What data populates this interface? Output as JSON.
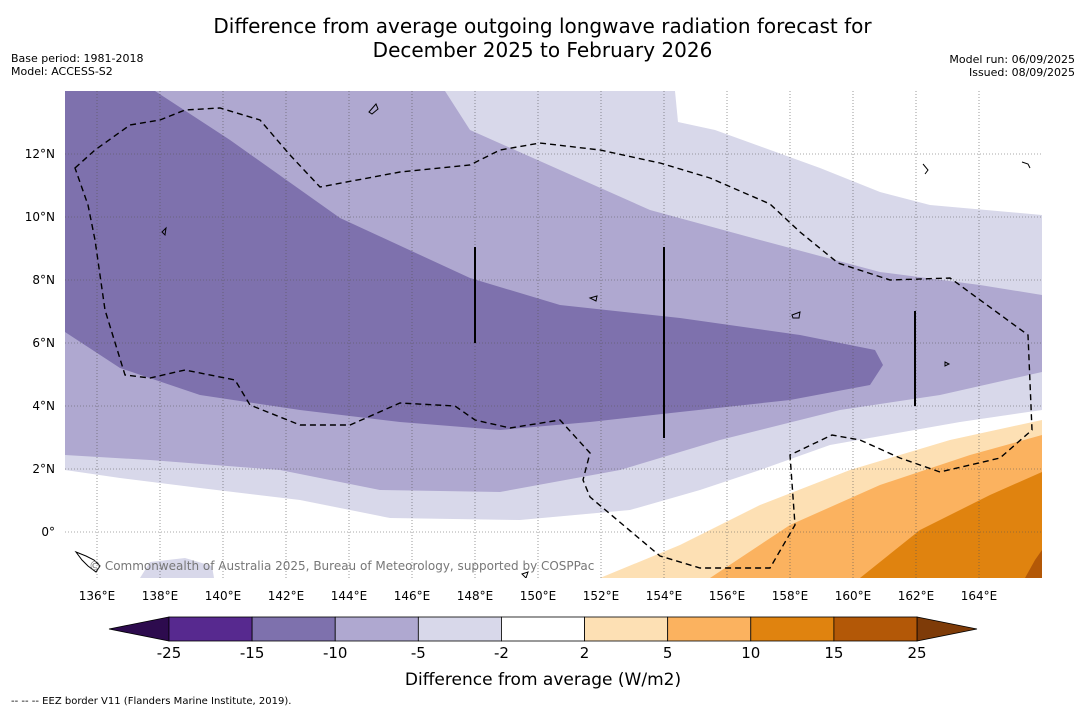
{
  "title_line1": "Difference from average outgoing longwave radiation forecast for",
  "title_line2": "December 2025 to February 2026",
  "base_period": "Base period: 1981-2018",
  "model": "Model: ACCESS-S2",
  "model_run": "Model run: 06/09/2025",
  "issued": "Issued: 08/09/2025",
  "copyright": "© Commonwealth of Australia 2025, Bureau of Meteorology, supported by COSPPac",
  "lat_labels": [
    "12°N",
    "10°N",
    "8°N",
    "6°N",
    "4°N",
    "2°N",
    "0°"
  ],
  "lon_labels": [
    "136°E",
    "138°E",
    "140°E",
    "142°E",
    "144°E",
    "146°E",
    "148°E",
    "150°E",
    "152°E",
    "154°E",
    "156°E",
    "158°E",
    "160°E",
    "162°E",
    "164°E"
  ],
  "colorbar": {
    "title": "Difference from average (W/m2)",
    "labels": [
      "-25",
      "-15",
      "-10",
      "-5",
      "-2",
      "2",
      "5",
      "10",
      "15",
      "25"
    ],
    "colors": [
      "#57298f",
      "#7e71ad",
      "#afa8d0",
      "#d8d8ea",
      "#ffffff",
      "#fde0b4",
      "#fbb25f",
      "#e0830f",
      "#b35807"
    ],
    "under_color": "#2d0b4e",
    "over_color": "#7e3b08"
  },
  "footnote": "-- -- -- EEZ border V11 (Flanders Marine Institute, 2019)."
}
